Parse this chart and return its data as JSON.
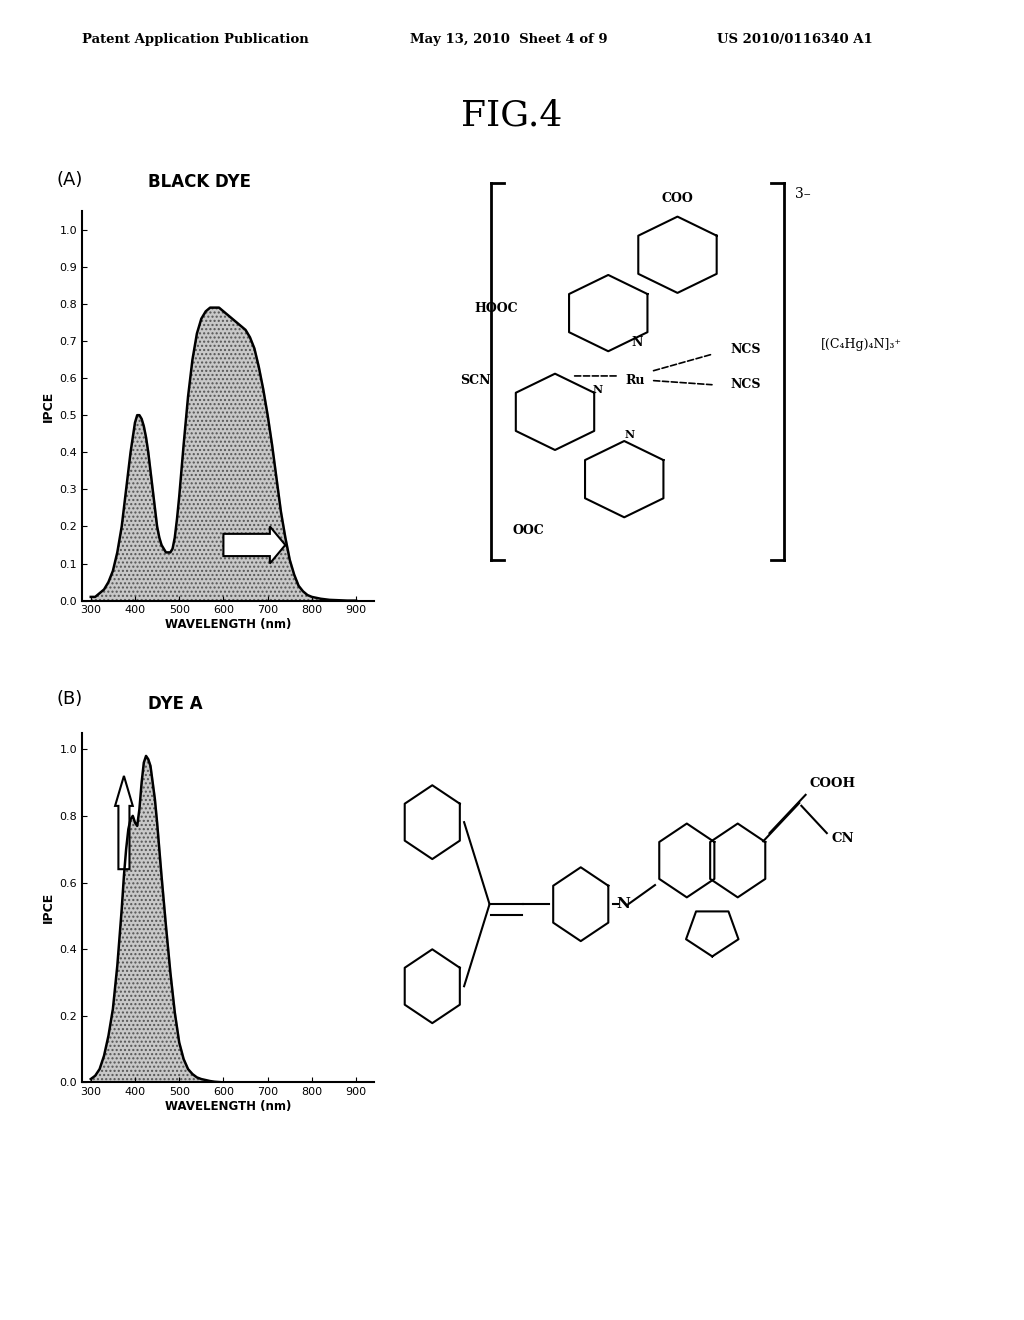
{
  "title": "FIG.4",
  "header_left": "Patent Application Publication",
  "header_center": "May 13, 2010  Sheet 4 of 9",
  "header_right": "US 2010/0116340 A1",
  "panel_A_label": "(A)",
  "panel_A_title": "BLACK DYE",
  "panel_B_label": "(B)",
  "panel_B_title": "DYE A",
  "xlabel": "WAVELENGTH (nm)",
  "ylabel": "IPCE",
  "xlim": [
    280,
    940
  ],
  "ylim": [
    0.0,
    1.05
  ],
  "xticks": [
    300,
    400,
    500,
    600,
    700,
    800,
    900
  ],
  "yticks_A": [
    0.0,
    0.1,
    0.2,
    0.3,
    0.4,
    0.5,
    0.6,
    0.7,
    0.8,
    0.9,
    1.0
  ],
  "yticks_B": [
    0.0,
    0.2,
    0.4,
    0.6,
    0.8,
    1.0
  ],
  "bg_color": "#ffffff",
  "fill_color": "#bbbbbb",
  "line_color": "#000000",
  "blackdye_x": [
    300,
    310,
    320,
    330,
    340,
    350,
    360,
    370,
    380,
    390,
    400,
    405,
    410,
    415,
    420,
    425,
    430,
    435,
    440,
    445,
    450,
    455,
    460,
    465,
    470,
    475,
    480,
    485,
    490,
    495,
    500,
    510,
    520,
    530,
    540,
    550,
    560,
    570,
    580,
    590,
    600,
    610,
    620,
    630,
    640,
    650,
    660,
    670,
    680,
    690,
    700,
    710,
    720,
    730,
    740,
    750,
    760,
    770,
    780,
    790,
    800,
    820,
    840,
    860,
    880,
    900
  ],
  "blackdye_y": [
    0.01,
    0.01,
    0.02,
    0.03,
    0.05,
    0.08,
    0.13,
    0.2,
    0.3,
    0.4,
    0.48,
    0.5,
    0.5,
    0.49,
    0.47,
    0.44,
    0.4,
    0.35,
    0.3,
    0.25,
    0.2,
    0.17,
    0.15,
    0.14,
    0.13,
    0.13,
    0.13,
    0.14,
    0.17,
    0.22,
    0.28,
    0.42,
    0.55,
    0.65,
    0.72,
    0.76,
    0.78,
    0.79,
    0.79,
    0.79,
    0.78,
    0.77,
    0.76,
    0.75,
    0.74,
    0.73,
    0.71,
    0.68,
    0.63,
    0.57,
    0.5,
    0.42,
    0.33,
    0.24,
    0.17,
    0.11,
    0.07,
    0.04,
    0.025,
    0.015,
    0.01,
    0.005,
    0.002,
    0.001,
    0.0,
    0.0
  ],
  "dyeA_x": [
    300,
    310,
    320,
    330,
    340,
    350,
    360,
    370,
    375,
    380,
    385,
    390,
    395,
    400,
    405,
    410,
    415,
    420,
    425,
    430,
    435,
    440,
    445,
    450,
    460,
    470,
    480,
    490,
    500,
    510,
    520,
    530,
    540,
    550,
    560,
    570,
    580,
    590,
    600,
    650,
    700,
    750,
    800,
    900
  ],
  "dyeA_y": [
    0.01,
    0.02,
    0.04,
    0.08,
    0.14,
    0.22,
    0.35,
    0.52,
    0.62,
    0.7,
    0.76,
    0.79,
    0.8,
    0.78,
    0.77,
    0.82,
    0.9,
    0.96,
    0.98,
    0.97,
    0.95,
    0.9,
    0.85,
    0.78,
    0.62,
    0.47,
    0.33,
    0.21,
    0.12,
    0.07,
    0.04,
    0.025,
    0.015,
    0.01,
    0.007,
    0.004,
    0.002,
    0.001,
    0.0,
    0.0,
    0.0,
    0.0,
    0.0,
    0.0
  ]
}
